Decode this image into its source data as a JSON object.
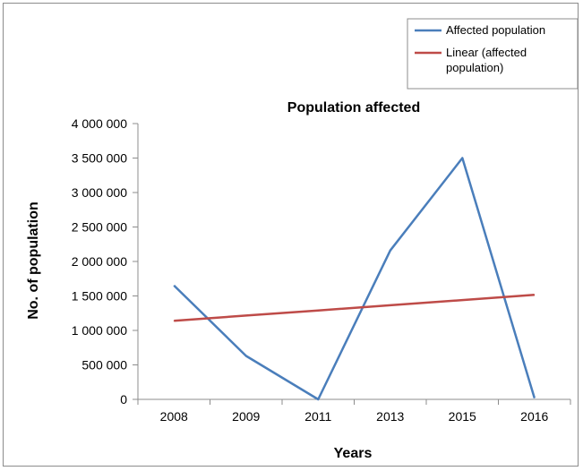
{
  "chart_data": {
    "type": "line",
    "title": "Population affected",
    "xlabel": "Years",
    "ylabel": "No. of population",
    "categories": [
      "2008",
      "2009",
      "2011",
      "2013",
      "2015",
      "2016"
    ],
    "series": [
      {
        "name": "Affected population",
        "values": [
          1650000,
          630000,
          0,
          2160000,
          3500000,
          20000
        ],
        "color": "#4a7ebb"
      },
      {
        "name": "Linear (affected population)",
        "values": [
          1140000,
          1215000,
          1290000,
          1365000,
          1440000,
          1515000
        ],
        "color": "#be4b48",
        "trendline": true
      }
    ],
    "ylim": [
      0,
      4000000
    ],
    "yticks": [
      {
        "value": 0,
        "label": "0"
      },
      {
        "value": 500000,
        "label": "500 000"
      },
      {
        "value": 1000000,
        "label": "1 000 000"
      },
      {
        "value": 1500000,
        "label": "1 500 000"
      },
      {
        "value": 2000000,
        "label": "2 000 000"
      },
      {
        "value": 2500000,
        "label": "2 500 000"
      },
      {
        "value": 3000000,
        "label": "3 000 000"
      },
      {
        "value": 3500000,
        "label": "3 500 000"
      },
      {
        "value": 4000000,
        "label": "4 000 000"
      }
    ],
    "grid": false,
    "legend": {
      "placement": "top-right",
      "entries": [
        "Affected population",
        "Linear (affected population)"
      ]
    }
  }
}
